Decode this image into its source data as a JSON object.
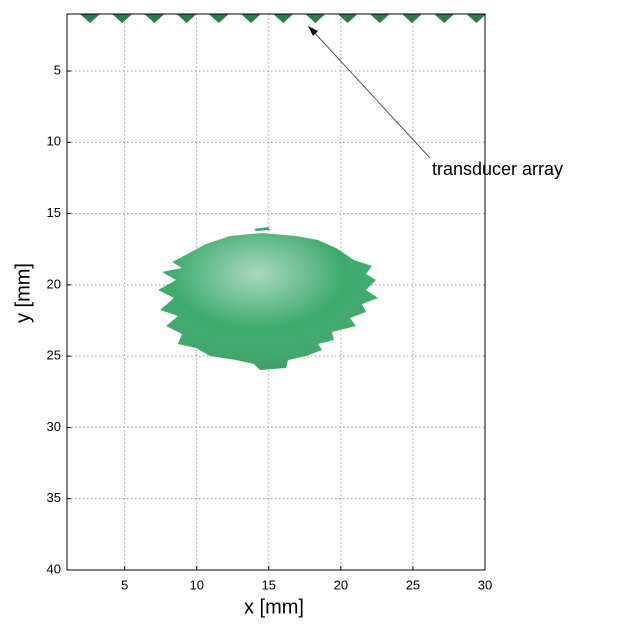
{
  "chart_data": {
    "type": "image",
    "xlabel": "x [mm]",
    "ylabel": "y [mm]",
    "xlim": [
      1,
      30
    ],
    "ylim": [
      1,
      40
    ],
    "y_inverted": true,
    "xticks": [
      5,
      10,
      15,
      20,
      25,
      30
    ],
    "yticks": [
      5,
      10,
      15,
      20,
      25,
      30,
      35,
      40
    ],
    "grid": true,
    "color": "#3daa6c",
    "annotation": "transducer array"
  }
}
